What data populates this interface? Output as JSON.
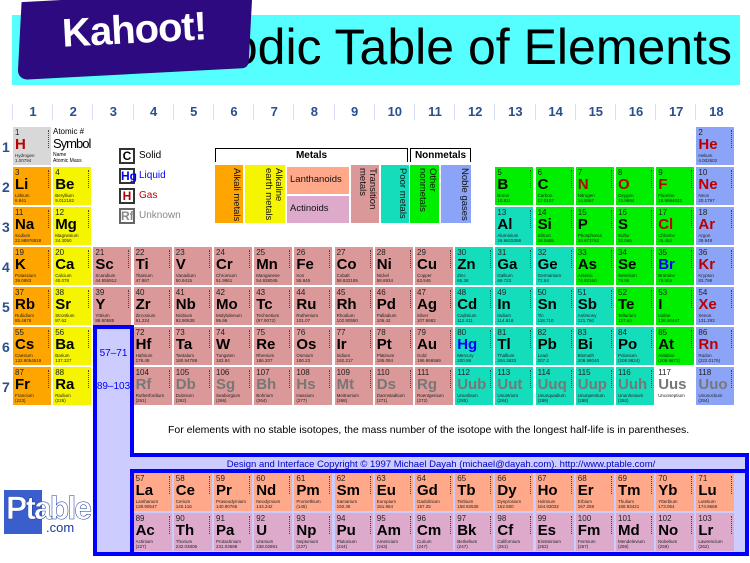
{
  "header": {
    "title": "Periodic Table of Elements",
    "logo_text": "Kahoot!",
    "banner_color": "#55ffff",
    "logo_color": "#2e0a80"
  },
  "groups": [
    "1",
    "2",
    "3",
    "4",
    "5",
    "6",
    "7",
    "8",
    "9",
    "10",
    "11",
    "12",
    "13",
    "14",
    "15",
    "16",
    "17",
    "18"
  ],
  "periods": [
    "1",
    "2",
    "3",
    "4",
    "5",
    "6",
    "7"
  ],
  "key": {
    "atomic": "Atomic #",
    "symbol": "Symbol",
    "name": "Name",
    "mass": "Atomic Mass"
  },
  "states": [
    {
      "sym": "C",
      "label": "Solid",
      "color": "#000000"
    },
    {
      "sym": "Hg",
      "label": "Liquid",
      "color": "#0000ff"
    },
    {
      "sym": "H",
      "label": "Gas",
      "color": "#bb0000"
    },
    {
      "sym": "Rf",
      "label": "Unknown",
      "color": "#888888"
    }
  ],
  "legend": {
    "metals": "Metals",
    "nonmetals": "Nonmetals",
    "categories": [
      {
        "id": "alkali",
        "label": "Alkali metals",
        "color": "#ffa500"
      },
      {
        "id": "alkaline",
        "label": "Alkaline earth metals",
        "color": "#f5f500"
      },
      {
        "id": "lanth",
        "label": "Lanthanoids",
        "color": "#ffa98a"
      },
      {
        "id": "actin",
        "label": "Actinoids",
        "color": "#ddaacc"
      },
      {
        "id": "trans",
        "label": "Transition metals",
        "color": "#db9898"
      },
      {
        "id": "poor",
        "label": "Poor metals",
        "color": "#14ddbb"
      },
      {
        "id": "nonmetal",
        "label": "Other nonmetals",
        "color": "#00ee00"
      },
      {
        "id": "noble",
        "label": "Noble gases",
        "color": "#8ca4f8"
      }
    ]
  },
  "placeholders": {
    "lanthanides": "57–71",
    "actinides": "89–103"
  },
  "footnote": "For elements with no stable isotopes, the mass number of the isotope with the longest half-life is in parentheses.",
  "copyright": "Design and Interface Copyright © 1997 Michael Dayah (michael@dayah.com). http://www.ptable.com/",
  "ptable_logo": {
    "main": "Ptable",
    ".com": ".com"
  },
  "elements": [
    [
      1,
      "H",
      "Hydrogen",
      "1.00794",
      "hyd",
      "gas"
    ],
    [
      2,
      "He",
      "Helium",
      "4.002602",
      "noble",
      "gas"
    ],
    [
      3,
      "Li",
      "Lithium",
      "6.941",
      "alkali",
      "solid"
    ],
    [
      4,
      "Be",
      "Beryllium",
      "9.012182",
      "alkaline",
      "solid"
    ],
    [
      5,
      "B",
      "Boron",
      "10.811",
      "nonmetal",
      "solid"
    ],
    [
      6,
      "C",
      "Carbon",
      "12.0107",
      "nonmetal",
      "solid"
    ],
    [
      7,
      "N",
      "Nitrogen",
      "14.0067",
      "nonmetal",
      "gas"
    ],
    [
      8,
      "O",
      "Oxygen",
      "15.9994",
      "nonmetal",
      "gas"
    ],
    [
      9,
      "F",
      "Fluorine",
      "18.9984032",
      "nonmetal",
      "gas"
    ],
    [
      10,
      "Ne",
      "Neon",
      "20.1797",
      "noble",
      "gas"
    ],
    [
      11,
      "Na",
      "Sodium",
      "22.98976928",
      "alkali",
      "solid"
    ],
    [
      12,
      "Mg",
      "Magnesium",
      "24.3050",
      "alkaline",
      "solid"
    ],
    [
      13,
      "Al",
      "Aluminium",
      "26.9815386",
      "poor",
      "solid"
    ],
    [
      14,
      "Si",
      "Silicon",
      "28.0855",
      "nonmetal",
      "solid"
    ],
    [
      15,
      "P",
      "Phosphorus",
      "30.973762",
      "nonmetal",
      "solid"
    ],
    [
      16,
      "S",
      "Sulfur",
      "32.065",
      "nonmetal",
      "solid"
    ],
    [
      17,
      "Cl",
      "Chlorine",
      "35.453",
      "nonmetal",
      "gas"
    ],
    [
      18,
      "Ar",
      "Argon",
      "39.948",
      "noble",
      "gas"
    ],
    [
      19,
      "K",
      "Potassium",
      "39.0983",
      "alkali",
      "solid"
    ],
    [
      20,
      "Ca",
      "Calcium",
      "40.078",
      "alkaline",
      "solid"
    ],
    [
      21,
      "Sc",
      "Scandium",
      "44.955912",
      "trans",
      "solid"
    ],
    [
      22,
      "Ti",
      "Titanium",
      "47.867",
      "trans",
      "solid"
    ],
    [
      23,
      "V",
      "Vanadium",
      "50.9415",
      "trans",
      "solid"
    ],
    [
      24,
      "Cr",
      "Chromium",
      "51.9961",
      "trans",
      "solid"
    ],
    [
      25,
      "Mn",
      "Manganese",
      "54.938045",
      "trans",
      "solid"
    ],
    [
      26,
      "Fe",
      "Iron",
      "55.845",
      "trans",
      "solid"
    ],
    [
      27,
      "Co",
      "Cobalt",
      "58.933195",
      "trans",
      "solid"
    ],
    [
      28,
      "Ni",
      "Nickel",
      "58.6934",
      "trans",
      "solid"
    ],
    [
      29,
      "Cu",
      "Copper",
      "63.546",
      "trans",
      "solid"
    ],
    [
      30,
      "Zn",
      "Zinc",
      "65.38",
      "poor",
      "solid"
    ],
    [
      31,
      "Ga",
      "Gallium",
      "69.723",
      "poor",
      "solid"
    ],
    [
      32,
      "Ge",
      "Germanium",
      "72.64",
      "poor",
      "solid"
    ],
    [
      33,
      "As",
      "Arsenic",
      "74.92160",
      "nonmetal",
      "solid"
    ],
    [
      34,
      "Se",
      "Selenium",
      "78.96",
      "nonmetal",
      "solid"
    ],
    [
      35,
      "Br",
      "Bromine",
      "79.904",
      "nonmetal",
      "liquid"
    ],
    [
      36,
      "Kr",
      "Krypton",
      "83.798",
      "noble",
      "gas"
    ],
    [
      37,
      "Rb",
      "Rubidium",
      "85.4678",
      "alkali",
      "solid"
    ],
    [
      38,
      "Sr",
      "Strontium",
      "87.62",
      "alkaline",
      "solid"
    ],
    [
      39,
      "Y",
      "Yttrium",
      "88.90585",
      "trans",
      "solid"
    ],
    [
      40,
      "Zr",
      "Zirconium",
      "91.224",
      "trans",
      "solid"
    ],
    [
      41,
      "Nb",
      "Niobium",
      "92.90638",
      "trans",
      "solid"
    ],
    [
      42,
      "Mo",
      "Molybdenum",
      "95.96",
      "trans",
      "solid"
    ],
    [
      43,
      "Tc",
      "Technetium",
      "(97.9072)",
      "trans",
      "solid"
    ],
    [
      44,
      "Ru",
      "Ruthenium",
      "101.07",
      "trans",
      "solid"
    ],
    [
      45,
      "Rh",
      "Rhodium",
      "102.90550",
      "trans",
      "solid"
    ],
    [
      46,
      "Pd",
      "Palladium",
      "106.42",
      "trans",
      "solid"
    ],
    [
      47,
      "Ag",
      "Silver",
      "107.8682",
      "trans",
      "solid"
    ],
    [
      48,
      "Cd",
      "Cadmium",
      "112.411",
      "poor",
      "solid"
    ],
    [
      49,
      "In",
      "Indium",
      "114.818",
      "poor",
      "solid"
    ],
    [
      50,
      "Sn",
      "Tin",
      "118.710",
      "poor",
      "solid"
    ],
    [
      51,
      "Sb",
      "Antimony",
      "121.760",
      "poor",
      "solid"
    ],
    [
      52,
      "Te",
      "Tellurium",
      "127.60",
      "nonmetal",
      "solid"
    ],
    [
      53,
      "I",
      "Iodine",
      "126.90447",
      "nonmetal",
      "solid"
    ],
    [
      54,
      "Xe",
      "Xenon",
      "131.293",
      "noble",
      "gas"
    ],
    [
      55,
      "Cs",
      "Caesium",
      "132.9054519",
      "alkali",
      "solid"
    ],
    [
      56,
      "Ba",
      "Barium",
      "137.327",
      "alkaline",
      "solid"
    ],
    [
      57,
      "La",
      "Lanthanum",
      "138.90547",
      "lanth",
      "solid"
    ],
    [
      58,
      "Ce",
      "Cerium",
      "140.116",
      "lanth",
      "solid"
    ],
    [
      59,
      "Pr",
      "Praseodymium",
      "140.90765",
      "lanth",
      "solid"
    ],
    [
      60,
      "Nd",
      "Neodymium",
      "144.242",
      "lanth",
      "solid"
    ],
    [
      61,
      "Pm",
      "Promethium",
      "(145)",
      "lanth",
      "solid"
    ],
    [
      62,
      "Sm",
      "Samarium",
      "150.36",
      "lanth",
      "solid"
    ],
    [
      63,
      "Eu",
      "Europium",
      "151.964",
      "lanth",
      "solid"
    ],
    [
      64,
      "Gd",
      "Gadolinium",
      "157.25",
      "lanth",
      "solid"
    ],
    [
      65,
      "Tb",
      "Terbium",
      "158.92535",
      "lanth",
      "solid"
    ],
    [
      66,
      "Dy",
      "Dysprosium",
      "162.500",
      "lanth",
      "solid"
    ],
    [
      67,
      "Ho",
      "Holmium",
      "164.93032",
      "lanth",
      "solid"
    ],
    [
      68,
      "Er",
      "Erbium",
      "167.259",
      "lanth",
      "solid"
    ],
    [
      69,
      "Tm",
      "Thulium",
      "168.93421",
      "lanth",
      "solid"
    ],
    [
      70,
      "Yb",
      "Ytterbium",
      "173.054",
      "lanth",
      "solid"
    ],
    [
      71,
      "Lu",
      "Lutetium",
      "174.9668",
      "lanth",
      "solid"
    ],
    [
      72,
      "Hf",
      "Hafnium",
      "178.49",
      "trans",
      "solid"
    ],
    [
      73,
      "Ta",
      "Tantalum",
      "180.94788",
      "trans",
      "solid"
    ],
    [
      74,
      "W",
      "Tungsten",
      "183.84",
      "trans",
      "solid"
    ],
    [
      75,
      "Re",
      "Rhenium",
      "186.207",
      "trans",
      "solid"
    ],
    [
      76,
      "Os",
      "Osmium",
      "190.23",
      "trans",
      "solid"
    ],
    [
      77,
      "Ir",
      "Iridium",
      "192.217",
      "trans",
      "solid"
    ],
    [
      78,
      "Pt",
      "Platinum",
      "195.084",
      "trans",
      "solid"
    ],
    [
      79,
      "Au",
      "Gold",
      "196.966569",
      "trans",
      "solid"
    ],
    [
      80,
      "Hg",
      "Mercury",
      "200.59",
      "poor",
      "liquid"
    ],
    [
      81,
      "Tl",
      "Thallium",
      "204.3833",
      "poor",
      "solid"
    ],
    [
      82,
      "Pb",
      "Lead",
      "207.2",
      "poor",
      "solid"
    ],
    [
      83,
      "Bi",
      "Bismuth",
      "208.98040",
      "poor",
      "solid"
    ],
    [
      84,
      "Po",
      "Polonium",
      "(208.9824)",
      "poor",
      "solid"
    ],
    [
      85,
      "At",
      "Astatine",
      "(209.9871)",
      "nonmetal",
      "solid"
    ],
    [
      86,
      "Rn",
      "Radon",
      "(222.0176)",
      "noble",
      "gas"
    ],
    [
      87,
      "Fr",
      "Francium",
      "(223)",
      "alkali",
      "solid"
    ],
    [
      88,
      "Ra",
      "Radium",
      "(226)",
      "alkaline",
      "solid"
    ],
    [
      89,
      "Ac",
      "Actinium",
      "(227)",
      "actin",
      "solid"
    ],
    [
      90,
      "Th",
      "Thorium",
      "232.03806",
      "actin",
      "solid"
    ],
    [
      91,
      "Pa",
      "Protactinium",
      "231.03588",
      "actin",
      "solid"
    ],
    [
      92,
      "U",
      "Uranium",
      "238.02891",
      "actin",
      "solid"
    ],
    [
      93,
      "Np",
      "Neptunium",
      "(237)",
      "actin",
      "solid"
    ],
    [
      94,
      "Pu",
      "Plutonium",
      "(244)",
      "actin",
      "solid"
    ],
    [
      95,
      "Am",
      "Americium",
      "(243)",
      "actin",
      "solid"
    ],
    [
      96,
      "Cm",
      "Curium",
      "(247)",
      "actin",
      "solid"
    ],
    [
      97,
      "Bk",
      "Berkelium",
      "(247)",
      "actin",
      "solid"
    ],
    [
      98,
      "Cf",
      "Californium",
      "(251)",
      "actin",
      "solid"
    ],
    [
      99,
      "Es",
      "Einsteinium",
      "(252)",
      "actin",
      "solid"
    ],
    [
      100,
      "Fm",
      "Fermium",
      "(257)",
      "actin",
      "solid"
    ],
    [
      101,
      "Md",
      "Mendelevium",
      "(258)",
      "actin",
      "solid"
    ],
    [
      102,
      "No",
      "Nobelium",
      "(259)",
      "actin",
      "solid"
    ],
    [
      103,
      "Lr",
      "Lawrencium",
      "(262)",
      "actin",
      "solid"
    ],
    [
      104,
      "Rf",
      "Rutherfordium",
      "(261)",
      "trans",
      "unknown"
    ],
    [
      105,
      "Db",
      "Dubnium",
      "(262)",
      "trans",
      "unknown"
    ],
    [
      106,
      "Sg",
      "Seaborgium",
      "(266)",
      "trans",
      "unknown"
    ],
    [
      107,
      "Bh",
      "Bohrium",
      "(264)",
      "trans",
      "unknown"
    ],
    [
      108,
      "Hs",
      "Hassium",
      "(277)",
      "trans",
      "unknown"
    ],
    [
      109,
      "Mt",
      "Meitnerium",
      "(268)",
      "trans",
      "unknown"
    ],
    [
      110,
      "Ds",
      "Darmstadtium",
      "(271)",
      "trans",
      "unknown"
    ],
    [
      111,
      "Rg",
      "Roentgenium",
      "(272)",
      "trans",
      "unknown"
    ],
    [
      112,
      "Uub",
      "Ununbium",
      "(285)",
      "poor",
      "unknown"
    ],
    [
      113,
      "Uut",
      "Ununtrium",
      "(284)",
      "poor",
      "unknown"
    ],
    [
      114,
      "Uuq",
      "Ununquadium",
      "(289)",
      "poor",
      "unknown"
    ],
    [
      115,
      "Uup",
      "Ununpentium",
      "(288)",
      "poor",
      "unknown"
    ],
    [
      116,
      "Uuh",
      "Ununhexium",
      "(292)",
      "poor",
      "unknown"
    ],
    [
      117,
      "Uus",
      "Ununseptium",
      "",
      "none",
      "unknown"
    ],
    [
      118,
      "Uuo",
      "Ununoctium",
      "(294)",
      "noble",
      "unknown"
    ]
  ]
}
